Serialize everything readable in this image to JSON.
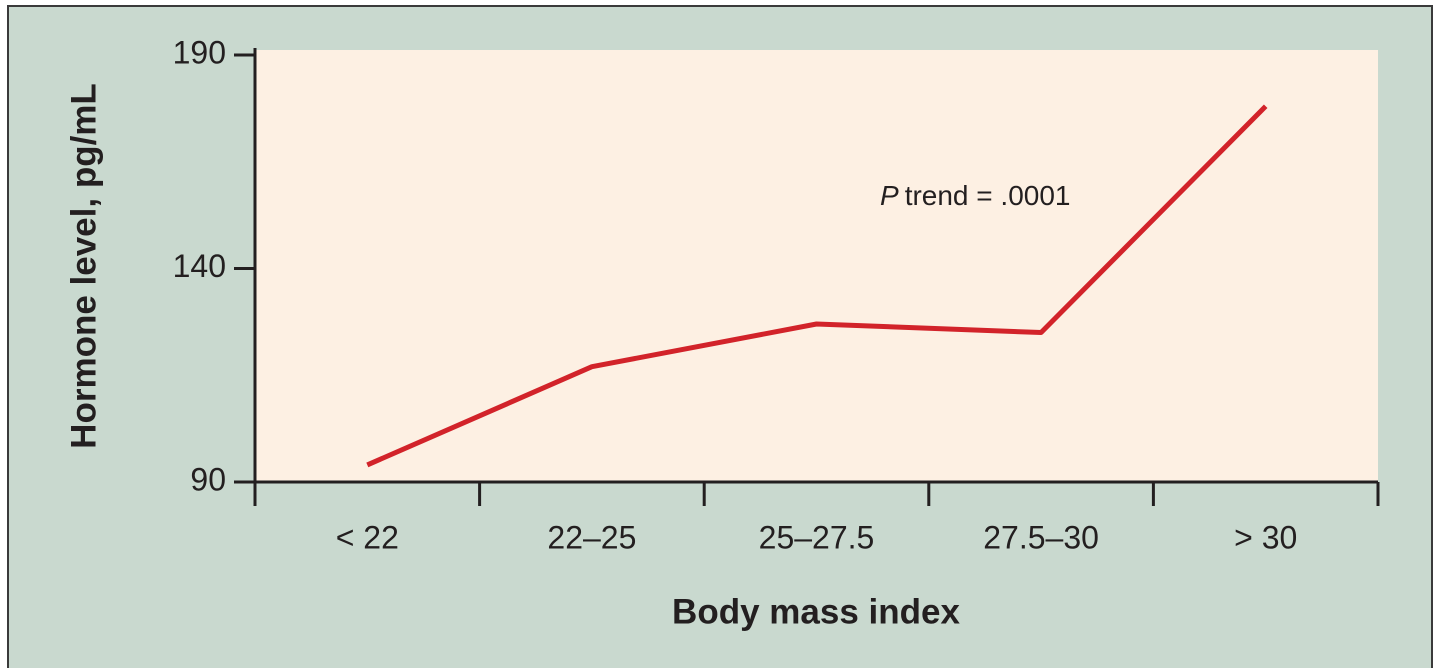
{
  "chart_data": {
    "type": "line",
    "categories": [
      "< 22",
      "22–25",
      "25–27.5",
      "27.5–30",
      "> 30"
    ],
    "values": [
      94,
      117,
      127,
      125,
      178
    ],
    "color": "#d2232a",
    "ylim": [
      90,
      190
    ],
    "yticks": [
      90,
      140,
      190
    ],
    "xlabel": "Body mass index",
    "ylabel": "Hormone level, pg/mL",
    "annotation": {
      "parts": [
        "P",
        "trend = .0001"
      ]
    }
  }
}
